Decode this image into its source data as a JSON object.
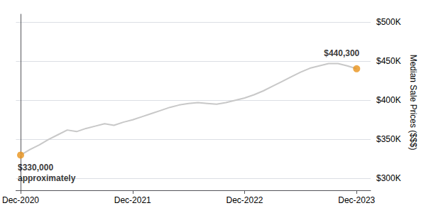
{
  "chart_data": {
    "type": "line",
    "ylabel": "Median Sale Prices ($$$)",
    "x": [
      0,
      1,
      2,
      3,
      4,
      5,
      6,
      7,
      8,
      9,
      10,
      11,
      12,
      13,
      14,
      15,
      16,
      17,
      18,
      19,
      20,
      21,
      22,
      23,
      24,
      25,
      26,
      27,
      28,
      29,
      30,
      31,
      32,
      33,
      34,
      35,
      36
    ],
    "series": [
      {
        "type": "line",
        "color": "#c8c8c8",
        "values": [
          330000,
          337000,
          343000,
          350000,
          356000,
          362000,
          360000,
          364000,
          367000,
          370000,
          368000,
          372000,
          375000,
          379000,
          383000,
          387000,
          391000,
          394000,
          396000,
          397000,
          396000,
          395000,
          397000,
          400000,
          403000,
          407000,
          412000,
          418000,
          424000,
          430000,
          436000,
          441000,
          444000,
          447000,
          447000,
          444000,
          440300
        ]
      },
      {
        "type": "scatter",
        "color": "#e8921a",
        "values": [
          330000,
          null,
          null,
          null,
          null,
          null,
          null,
          null,
          null,
          null,
          null,
          null,
          null,
          null,
          null,
          null,
          null,
          null,
          null,
          null,
          null,
          null,
          null,
          null,
          null,
          null,
          null,
          null,
          null,
          null,
          null,
          null,
          null,
          null,
          null,
          null,
          440300
        ]
      }
    ],
    "xlim": [
      -0.5,
      37.5
    ],
    "xticks": [
      {
        "value": 0,
        "label": "Dec-2020"
      },
      {
        "value": 12,
        "label": "Dec-2021"
      },
      {
        "value": 24,
        "label": "Dec-2022"
      },
      {
        "value": 36,
        "label": "Dec-2023"
      }
    ],
    "ylim": [
      285000,
      510000
    ],
    "yticks": [
      {
        "value": 300000,
        "label": "$300K"
      },
      {
        "value": 350000,
        "label": "$350K"
      },
      {
        "value": 400000,
        "label": "$400K"
      },
      {
        "value": 450000,
        "label": "$450K"
      },
      {
        "value": 500000,
        "label": "$500K"
      }
    ],
    "grid": true,
    "annotations": [
      {
        "text": "$330,000\napproximately",
        "x": 0,
        "y": 330000
      },
      {
        "text": "$440,300",
        "x": 36,
        "y": 440300
      }
    ]
  }
}
